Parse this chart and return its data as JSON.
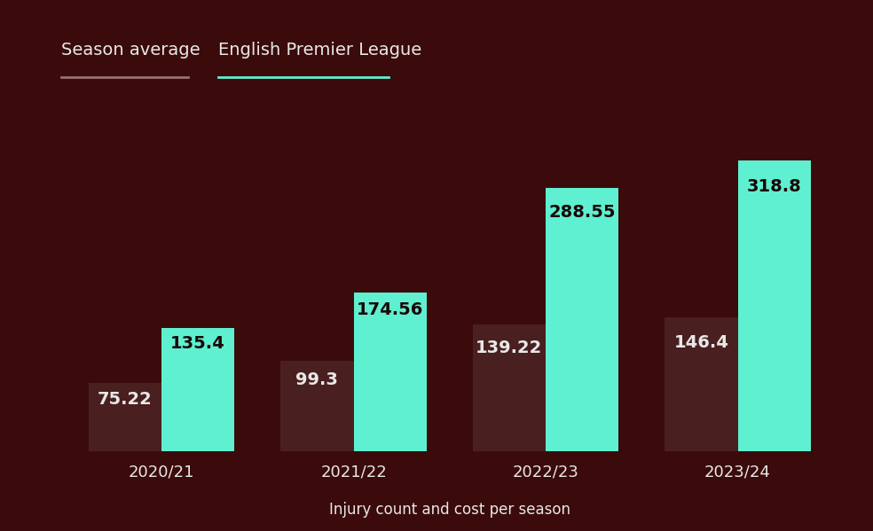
{
  "seasons": [
    "2020/21",
    "2021/22",
    "2022/23",
    "2023/24"
  ],
  "season_avg": [
    75.22,
    99.3,
    139.22,
    146.4
  ],
  "epl_values": [
    135.4,
    174.56,
    288.55,
    318.8
  ],
  "bar_color_avg": "#4a1f1f",
  "bar_color_epl": "#5ef0d0",
  "background_color": "#3b0b0b",
  "text_color_light": "#e8e8e8",
  "text_color_dark": "#1a0808",
  "label_avg": "Season average",
  "label_epl": "English Premier League",
  "xlabel": "Injury count and cost per season",
  "bar_width": 0.38,
  "legend_underline_avg": "#9a7070",
  "legend_underline_epl": "#5ef0d0",
  "value_fontsize": 14,
  "tick_fontsize": 13,
  "legend_fontsize": 14,
  "xlabel_fontsize": 12,
  "ylim_max": 390
}
